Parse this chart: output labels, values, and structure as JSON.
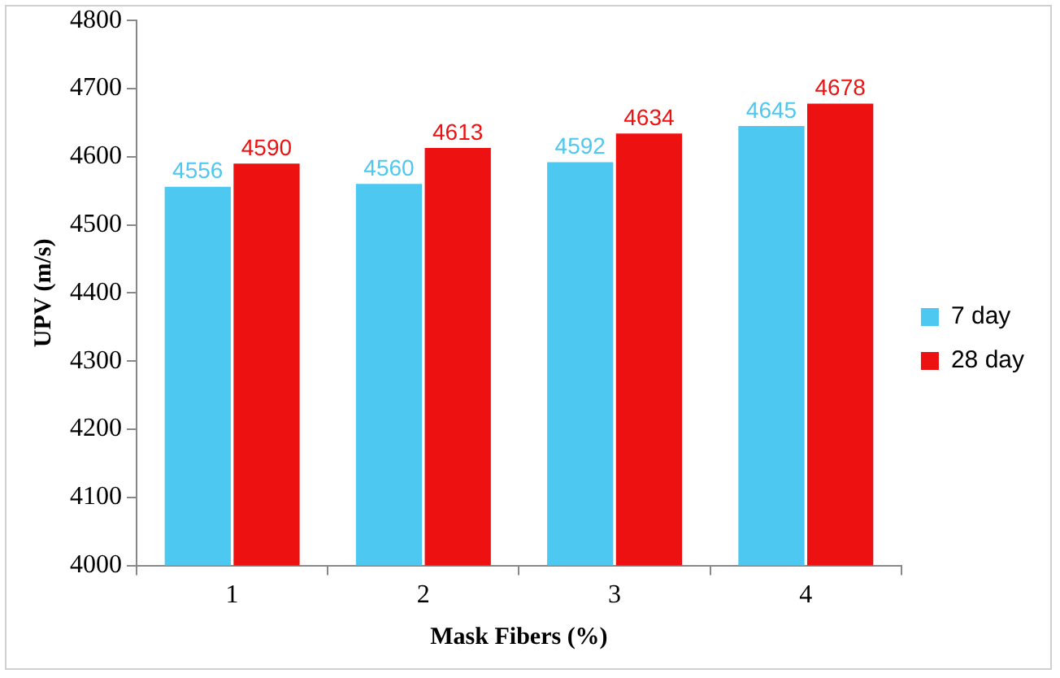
{
  "chart_data": {
    "type": "bar",
    "xlabel": "Mask Fibers (%)",
    "ylabel": "UPV (m/s)",
    "categories": [
      "1",
      "2",
      "3",
      "4"
    ],
    "series": [
      {
        "name": "7 day",
        "color": "#4dc8f0",
        "values": [
          4556,
          4560,
          4592,
          4645
        ]
      },
      {
        "name": "28 day",
        "color": "#ee1111",
        "values": [
          4590,
          4613,
          4634,
          4678
        ]
      }
    ],
    "ylim": [
      4000,
      4800
    ],
    "yticks": [
      4000,
      4100,
      4200,
      4300,
      4400,
      4500,
      4600,
      4700,
      4800
    ],
    "grid": false,
    "legend": "right",
    "data_labels": true
  }
}
